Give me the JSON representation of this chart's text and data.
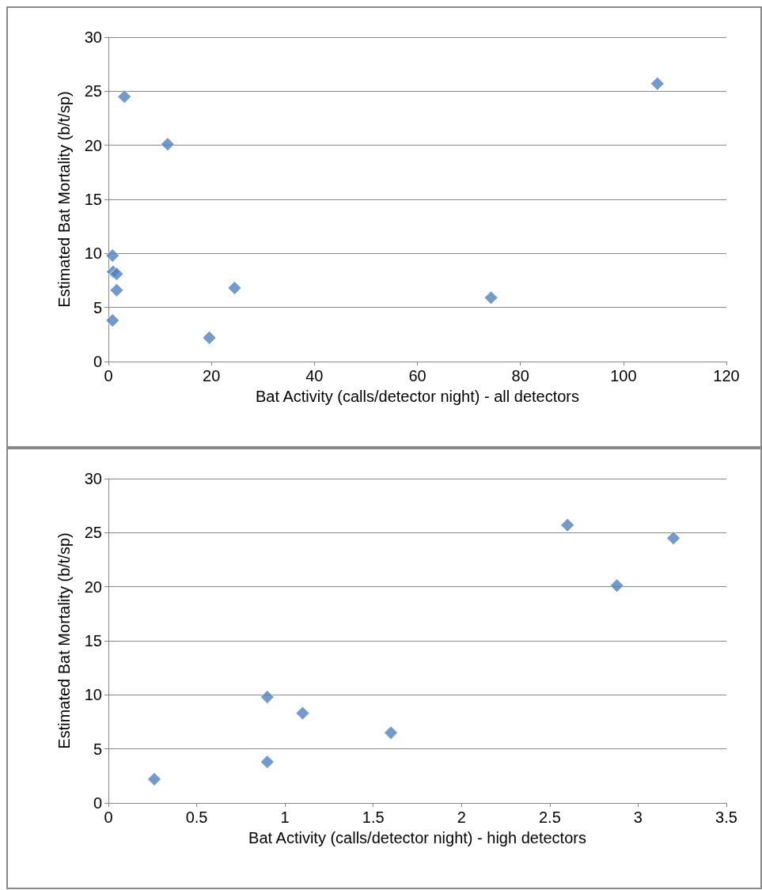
{
  "chart_data": [
    {
      "type": "scatter",
      "xlabel": "Bat Activity (calls/detector night) - all detectors",
      "ylabel": "Estimated Bat Mortality (b/t/sp)",
      "color": "#4f81bd",
      "marker": "diamond",
      "grid": "y",
      "x": [
        0.8,
        0.9,
        1.6,
        1.6,
        0.8,
        3.1,
        11.5,
        19.6,
        24.5,
        74.3,
        106.6
      ],
      "values": [
        9.8,
        8.3,
        8.1,
        6.6,
        3.8,
        24.5,
        20.1,
        2.2,
        6.8,
        5.9,
        25.7
      ],
      "xlim": [
        0,
        120
      ],
      "xticks": [
        0,
        20,
        40,
        60,
        80,
        100,
        120
      ],
      "ylim": [
        0,
        30
      ],
      "yticks": [
        0,
        5,
        10,
        15,
        20,
        25,
        30
      ]
    },
    {
      "type": "scatter",
      "xlabel": "Bat Activity (calls/detector night) - high detectors",
      "ylabel": "Estimated Bat Mortality (b/t/sp)",
      "color": "#4f81bd",
      "marker": "diamond",
      "grid": "y",
      "x": [
        0.26,
        0.9,
        0.9,
        1.1,
        1.6,
        2.6,
        2.88,
        3.2
      ],
      "values": [
        2.2,
        3.8,
        9.8,
        8.3,
        6.5,
        25.7,
        20.1,
        24.5
      ],
      "xlim": [
        0,
        3.5
      ],
      "xticks": [
        0,
        0.5,
        1,
        1.5,
        2,
        2.5,
        3,
        3.5
      ],
      "ylim": [
        0,
        30
      ],
      "yticks": [
        0,
        5,
        10,
        15,
        20,
        25,
        30
      ]
    }
  ]
}
